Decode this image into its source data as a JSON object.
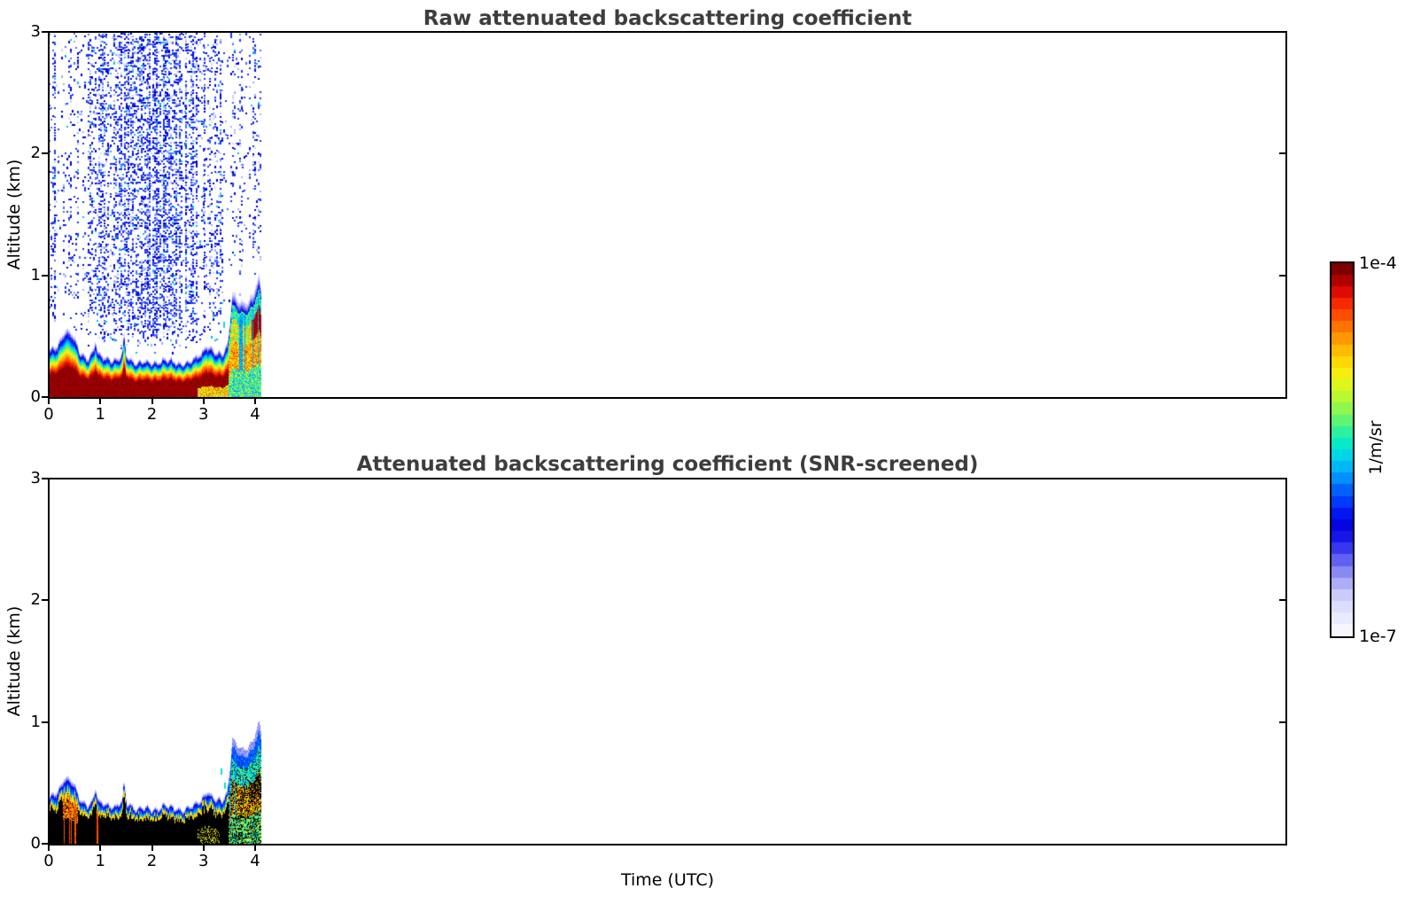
{
  "figure": {
    "background": "#ffffff",
    "title_color": "#3d3d3d",
    "text_color": "#000000",
    "xlabel": "Time (UTC)",
    "ylabel": "Altitude (km)",
    "colorbar": {
      "max_label": "1e-4",
      "min_label": "1e-7",
      "unit_label": "1/m/sr",
      "levels": 32,
      "colormap": "jet-with-white-floor",
      "colormap_stops": [
        [
          0.0,
          "#f6f6ff"
        ],
        [
          0.05,
          "#e4e4fc"
        ],
        [
          0.1,
          "#c9c9fa"
        ],
        [
          0.14,
          "#a3a3f6"
        ],
        [
          0.18,
          "#7272f2"
        ],
        [
          0.22,
          "#3d3dee"
        ],
        [
          0.26,
          "#1414e8"
        ],
        [
          0.3,
          "#0000e0"
        ],
        [
          0.34,
          "#0028ff"
        ],
        [
          0.39,
          "#0064ff"
        ],
        [
          0.43,
          "#00a0ff"
        ],
        [
          0.47,
          "#00ccf0"
        ],
        [
          0.51,
          "#00e8d0"
        ],
        [
          0.55,
          "#2ef29e"
        ],
        [
          0.59,
          "#70f566"
        ],
        [
          0.63,
          "#a8f83c"
        ],
        [
          0.67,
          "#d8f821"
        ],
        [
          0.71,
          "#f4ee11"
        ],
        [
          0.75,
          "#ffd400"
        ],
        [
          0.79,
          "#ffaa00"
        ],
        [
          0.83,
          "#ff7d00"
        ],
        [
          0.87,
          "#ff4e00"
        ],
        [
          0.91,
          "#f32300"
        ],
        [
          0.94,
          "#d90700"
        ],
        [
          0.97,
          "#ab0000"
        ],
        [
          1.0,
          "#7c0000"
        ]
      ]
    },
    "noise_speckle_colors": [
      "#1a35f0",
      "#0000d8",
      "#4b6bff",
      "#9fafff",
      "#cdd2ff",
      "#00c0ea"
    ],
    "noise_speckle_weights": [
      0.45,
      0.23,
      0.12,
      0.1,
      0.06,
      0.04
    ]
  },
  "chart_data": [
    {
      "type": "heatmap",
      "title": "Raw attenuated backscattering coefficient",
      "xlabel": "Time (UTC)",
      "ylabel": "Altitude (km)",
      "xlim": [
        0,
        24
      ],
      "ylim": [
        0,
        3
      ],
      "xticks": [
        0,
        1,
        2,
        3,
        4
      ],
      "yticks": [
        0,
        1,
        2,
        3
      ],
      "colorbar_range": [
        "1e-7",
        "1e-4"
      ],
      "units": "1/m/sr",
      "scale": "log",
      "data_time_extent_utc": [
        0,
        4.1
      ],
      "aerosol_layer_top_km": [
        [
          0,
          0.38
        ],
        [
          0.15,
          0.44
        ],
        [
          0.3,
          0.56
        ],
        [
          0.45,
          0.52
        ],
        [
          0.6,
          0.38
        ],
        [
          0.75,
          0.33
        ],
        [
          0.85,
          0.37
        ],
        [
          0.9,
          0.47
        ],
        [
          0.95,
          0.35
        ],
        [
          1.1,
          0.34
        ],
        [
          1.3,
          0.31
        ],
        [
          1.42,
          0.36
        ],
        [
          1.45,
          0.52
        ],
        [
          1.5,
          0.35
        ],
        [
          1.7,
          0.3
        ],
        [
          2.0,
          0.29
        ],
        [
          2.2,
          0.32
        ],
        [
          2.4,
          0.3
        ],
        [
          2.6,
          0.29
        ],
        [
          2.8,
          0.31
        ],
        [
          2.95,
          0.37
        ],
        [
          3.05,
          0.45
        ],
        [
          3.15,
          0.41
        ],
        [
          3.25,
          0.36
        ],
        [
          3.35,
          0.36
        ],
        [
          3.45,
          0.44
        ],
        [
          3.5,
          0.62
        ],
        [
          3.55,
          0.89
        ],
        [
          3.6,
          0.84
        ],
        [
          3.68,
          0.79
        ],
        [
          3.78,
          0.76
        ],
        [
          3.88,
          0.81
        ],
        [
          3.95,
          0.86
        ],
        [
          4.02,
          0.96
        ],
        [
          4.07,
          1.0
        ],
        [
          4.1,
          0.92
        ]
      ],
      "near_ground_signal": "dark red (~1e-4) below ~0.25 km until ~2.9 UTC, yellow/orange 2.9-3.5 UTC, green/cyan 3.5-4.1 UTC",
      "noise_bands_utc": [
        [
          0.0,
          0.1,
          0.35
        ],
        [
          0.1,
          0.35,
          0.06
        ],
        [
          0.35,
          0.55,
          0.18
        ],
        [
          0.55,
          0.75,
          0.08
        ],
        [
          0.75,
          1.15,
          0.38
        ],
        [
          1.15,
          1.25,
          0.15
        ],
        [
          1.25,
          1.55,
          0.45
        ],
        [
          1.55,
          1.9,
          0.5
        ],
        [
          1.9,
          2.55,
          0.55
        ],
        [
          2.55,
          2.65,
          0.08
        ],
        [
          2.65,
          2.85,
          0.45
        ],
        [
          2.85,
          3.0,
          0.12
        ],
        [
          3.0,
          3.35,
          0.3
        ],
        [
          3.35,
          3.55,
          0.05
        ],
        [
          3.55,
          3.75,
          0.2
        ],
        [
          3.75,
          3.95,
          0.1
        ],
        [
          3.95,
          4.1,
          0.25
        ]
      ],
      "plume": {
        "time_utc": [
          3.5,
          4.1
        ],
        "top_km": 1.0,
        "note": "multicoloured plume, dark-red core 0.45-0.7 km near 4.0-4.1 UTC"
      },
      "cyan_dashes": [
        [
          3.38,
          0.62
        ]
      ]
    },
    {
      "type": "heatmap",
      "title": "Attenuated backscattering coefficient (SNR-screened)",
      "xlabel": "Time (UTC)",
      "ylabel": "Altitude (km)",
      "xlim": [
        0,
        24
      ],
      "ylim": [
        0,
        3
      ],
      "xticks": [
        0,
        1,
        2,
        3,
        4
      ],
      "yticks": [
        0,
        1,
        2,
        3
      ],
      "colorbar_range": [
        "1e-7",
        "1e-4"
      ],
      "units": "1/m/sr",
      "scale": "log",
      "screened": true,
      "data_time_extent_utc": [
        0,
        4.1
      ],
      "aerosol_layer_top_km": [
        [
          0,
          0.38
        ],
        [
          0.15,
          0.44
        ],
        [
          0.3,
          0.56
        ],
        [
          0.45,
          0.52
        ],
        [
          0.6,
          0.38
        ],
        [
          0.75,
          0.33
        ],
        [
          0.85,
          0.37
        ],
        [
          0.9,
          0.47
        ],
        [
          0.95,
          0.35
        ],
        [
          1.1,
          0.34
        ],
        [
          1.3,
          0.31
        ],
        [
          1.42,
          0.36
        ],
        [
          1.45,
          0.52
        ],
        [
          1.5,
          0.35
        ],
        [
          1.7,
          0.3
        ],
        [
          2.0,
          0.29
        ],
        [
          2.2,
          0.32
        ],
        [
          2.4,
          0.3
        ],
        [
          2.6,
          0.29
        ],
        [
          2.8,
          0.31
        ],
        [
          2.95,
          0.37
        ],
        [
          3.05,
          0.45
        ],
        [
          3.15,
          0.41
        ],
        [
          3.25,
          0.36
        ],
        [
          3.35,
          0.36
        ],
        [
          3.45,
          0.44
        ],
        [
          3.5,
          0.62
        ],
        [
          3.55,
          0.89
        ],
        [
          3.6,
          0.84
        ],
        [
          3.68,
          0.79
        ],
        [
          3.78,
          0.76
        ],
        [
          3.88,
          0.81
        ],
        [
          3.95,
          0.86
        ],
        [
          4.02,
          0.96
        ],
        [
          4.07,
          1.0
        ],
        [
          4.1,
          0.92
        ]
      ],
      "black_core_note": "saturated returns rendered black below ~65% of layer top; noise above layer fully removed",
      "warm_streaks_utc": [
        [
          0.2,
          0.6
        ],
        [
          0.92,
          0.97
        ],
        [
          2.88,
          3.3
        ]
      ],
      "cyan_dashes": [
        [
          3.4,
          0.5
        ],
        [
          3.33,
          0.62
        ]
      ]
    }
  ]
}
